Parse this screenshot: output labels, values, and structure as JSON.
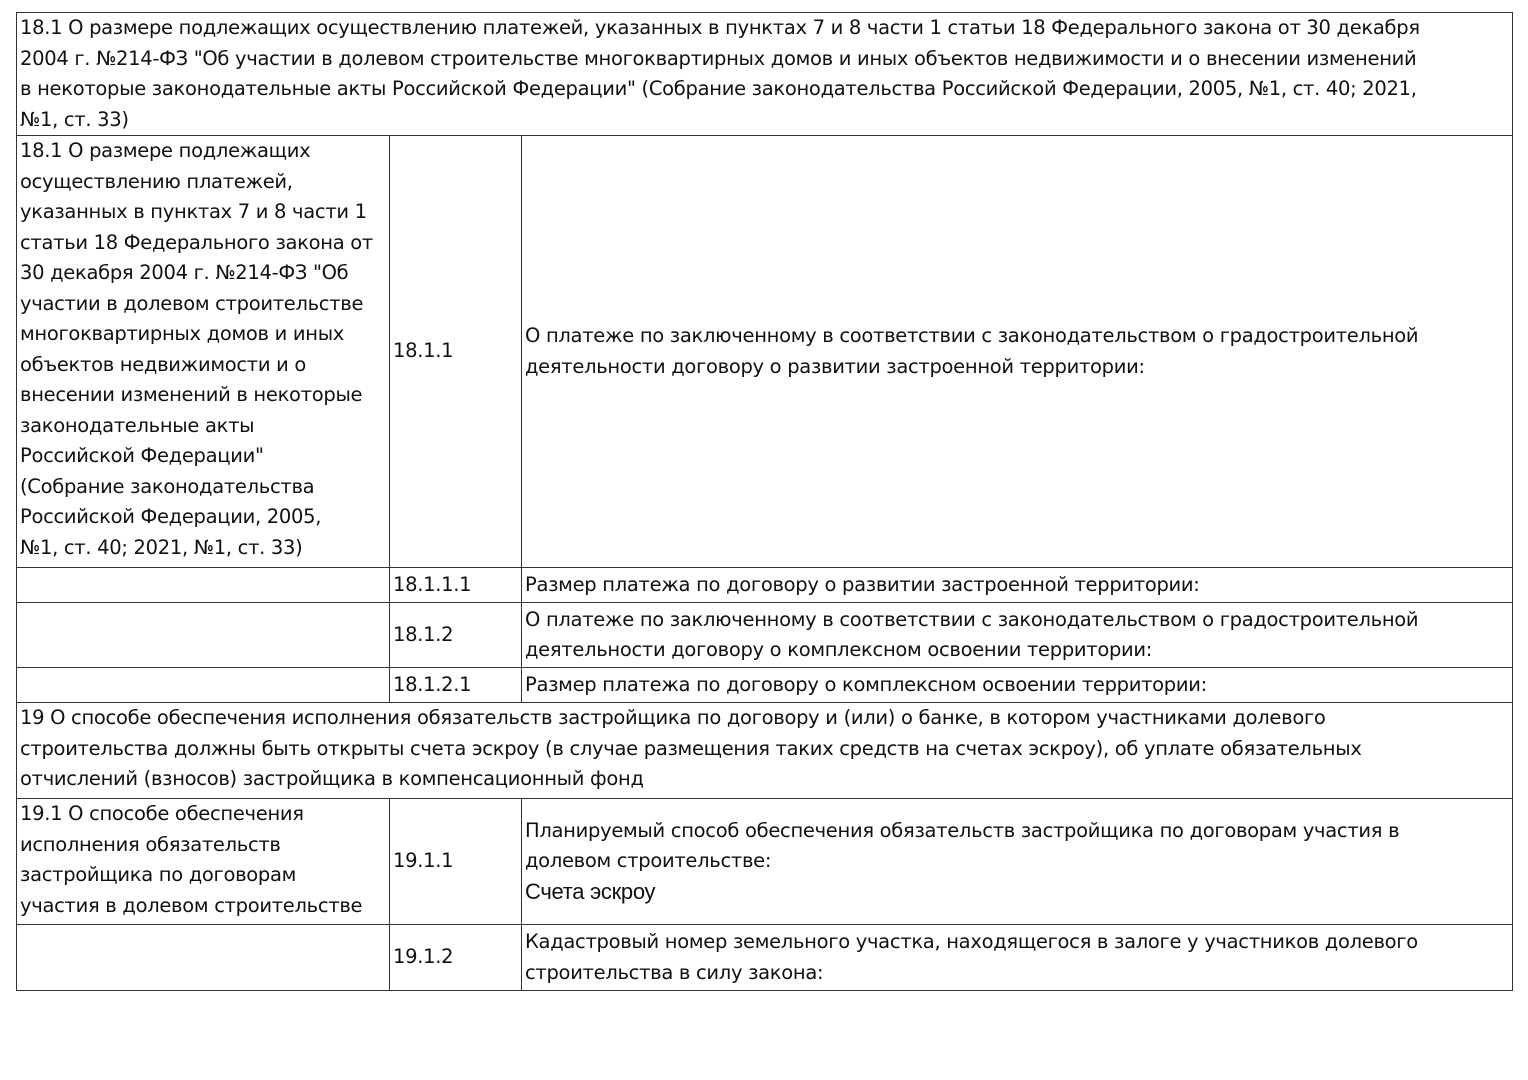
{
  "rows": [
    {
      "full": "18.1 О размере подлежащих осуществлению платежей, указанных в пунктах 7 и 8 части 1 статьи 18 Федерального закона от 30 декабря\n2004 г. №214-ФЗ \"Об участии в долевом строительстве многоквартирных домов и иных объектов недвижимости и о внесении изменений\nв некоторые законодательные акты Российской Федерации\" (Собрание законодательства Российской Федерации, 2005, №1, ст. 40; 2021,\n№1, ст. 33)"
    },
    {
      "section": "18.1 О размере подлежащих\nосуществлению платежей,\nуказанных в пунктах 7 и 8 части 1\nстатьи 18 Федерального закона от\n30 декабря 2004 г. №214-ФЗ \"Об\nучастии в долевом строительстве\nмногоквартирных домов и иных\nобъектов недвижимости и о\nвнесении изменений в некоторые\nзаконодательные акты\nРоссийской Федерации\"\n(Собрание законодательства\nРоссийской Федерации, 2005,\n№1, ст. 40; 2021, №1, ст. 33)",
      "code": "18.1.1",
      "text": "О платеже по заключенному в соответствии с законодательством о градостроительной\nдеятельности договору о развитии застроенной территории:"
    },
    {
      "section": "",
      "code": "18.1.1.1",
      "text": "Размер платежа по договору о развитии застроенной территории:"
    },
    {
      "section": "",
      "code": "18.1.2",
      "text": "О платеже по заключенному в соответствии с законодательством о градостроительной\nдеятельности договору о комплексном освоении территории:"
    },
    {
      "section": "",
      "code": "18.1.2.1",
      "text": "Размер платежа по договору о комплексном освоении территории:"
    },
    {
      "full": "19 О способе обеспечения исполнения обязательств застройщика по договору и (или) о банке, в котором участниками долевого\nстроительства должны быть открыты счета эскроу (в случае размещения таких средств на счетах эскроу), об уплате обязательных\nотчислений (взносов) застройщика в компенсационный фонд"
    },
    {
      "section": "19.1 О способе обеспечения\nисполнения обязательств\nзастройщика по договорам\nучастия в долевом строительстве",
      "code": "19.1.1",
      "text": "Планируемый способ обеспечения обязательств застройщика по договорам участия в\nдолевом строительстве:",
      "value": "Счета эскроу"
    },
    {
      "section": "",
      "code": "19.1.2",
      "text": "Кадастровый номер земельного участка, находящегося в залоге у участников долевого\nстроительства в силу закона:"
    }
  ]
}
